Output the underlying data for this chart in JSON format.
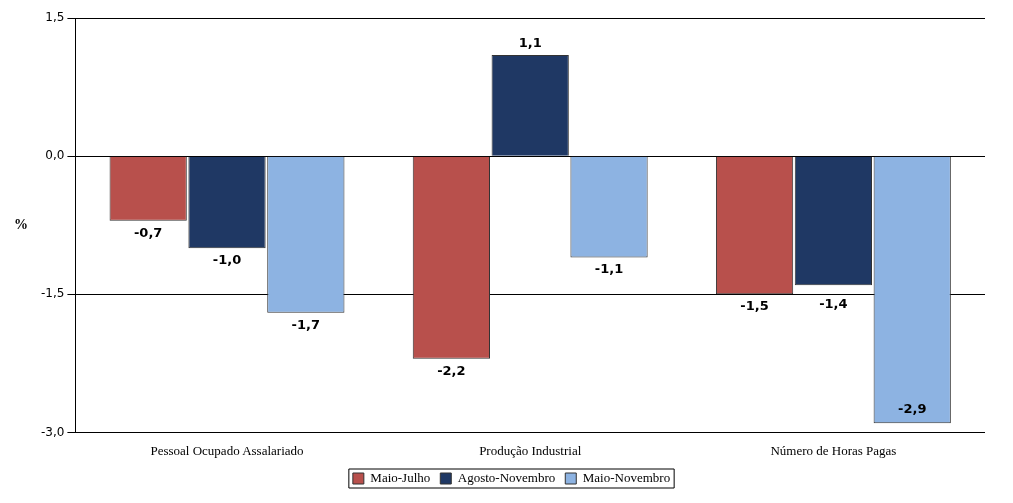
{
  "chart_data": {
    "type": "bar",
    "ylabel": "%",
    "categories": [
      "Pessoal Ocupado Assalariado",
      "Produção Industrial",
      "Número de Horas Pagas"
    ],
    "series": [
      {
        "name": "Maio-Julho",
        "color": "#b8504c",
        "values": [
          -0.7,
          -2.2,
          -1.5
        ],
        "value_labels": [
          "-0,7",
          "-2,2",
          "-1,5"
        ]
      },
      {
        "name": "Agosto-Novembro",
        "color": "#1f3864",
        "values": [
          -1.0,
          1.1,
          -1.4
        ],
        "value_labels": [
          "-1,0",
          "1,1",
          "-1,4"
        ]
      },
      {
        "name": "Maio-Novembro",
        "color": "#8db3e2",
        "values": [
          -1.7,
          -1.1,
          -2.9
        ],
        "value_labels": [
          "-1,7",
          "-1,1",
          "-2,9"
        ]
      }
    ],
    "ylim": [
      -3.0,
      1.5
    ],
    "yticks": [
      {
        "value": 1.5,
        "label": "1,5"
      },
      {
        "value": 0,
        "label": "0,0"
      },
      {
        "value": -1.5,
        "label": "-1,5"
      },
      {
        "value": -3.0,
        "label": "-3,0"
      }
    ],
    "grid": "y",
    "legend": "bottom"
  }
}
